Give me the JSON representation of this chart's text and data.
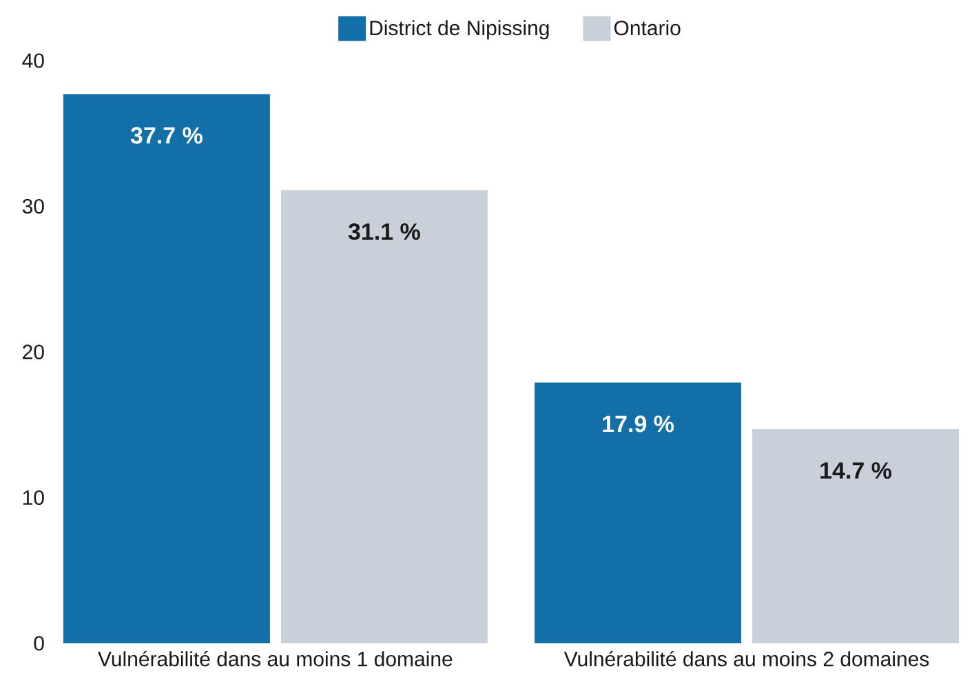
{
  "chart_data": {
    "type": "bar",
    "categories": [
      "Vulnérabilité dans au moins 1 domaine",
      "Vulnérabilité dans au moins 2 domaines"
    ],
    "series": [
      {
        "name": "District de Nipissing",
        "color": "#136fa8",
        "values": [
          37.7,
          17.9
        ],
        "value_labels": [
          "37.7 %",
          "17.9 %"
        ]
      },
      {
        "name": "Ontario",
        "color": "#c9d0da",
        "values": [
          31.1,
          14.7
        ],
        "value_labels": [
          "31.1 %",
          "14.7 %"
        ]
      }
    ],
    "ylim": [
      0,
      40
    ],
    "yticks": [
      0,
      10,
      20,
      30,
      40
    ],
    "legend": "top"
  }
}
